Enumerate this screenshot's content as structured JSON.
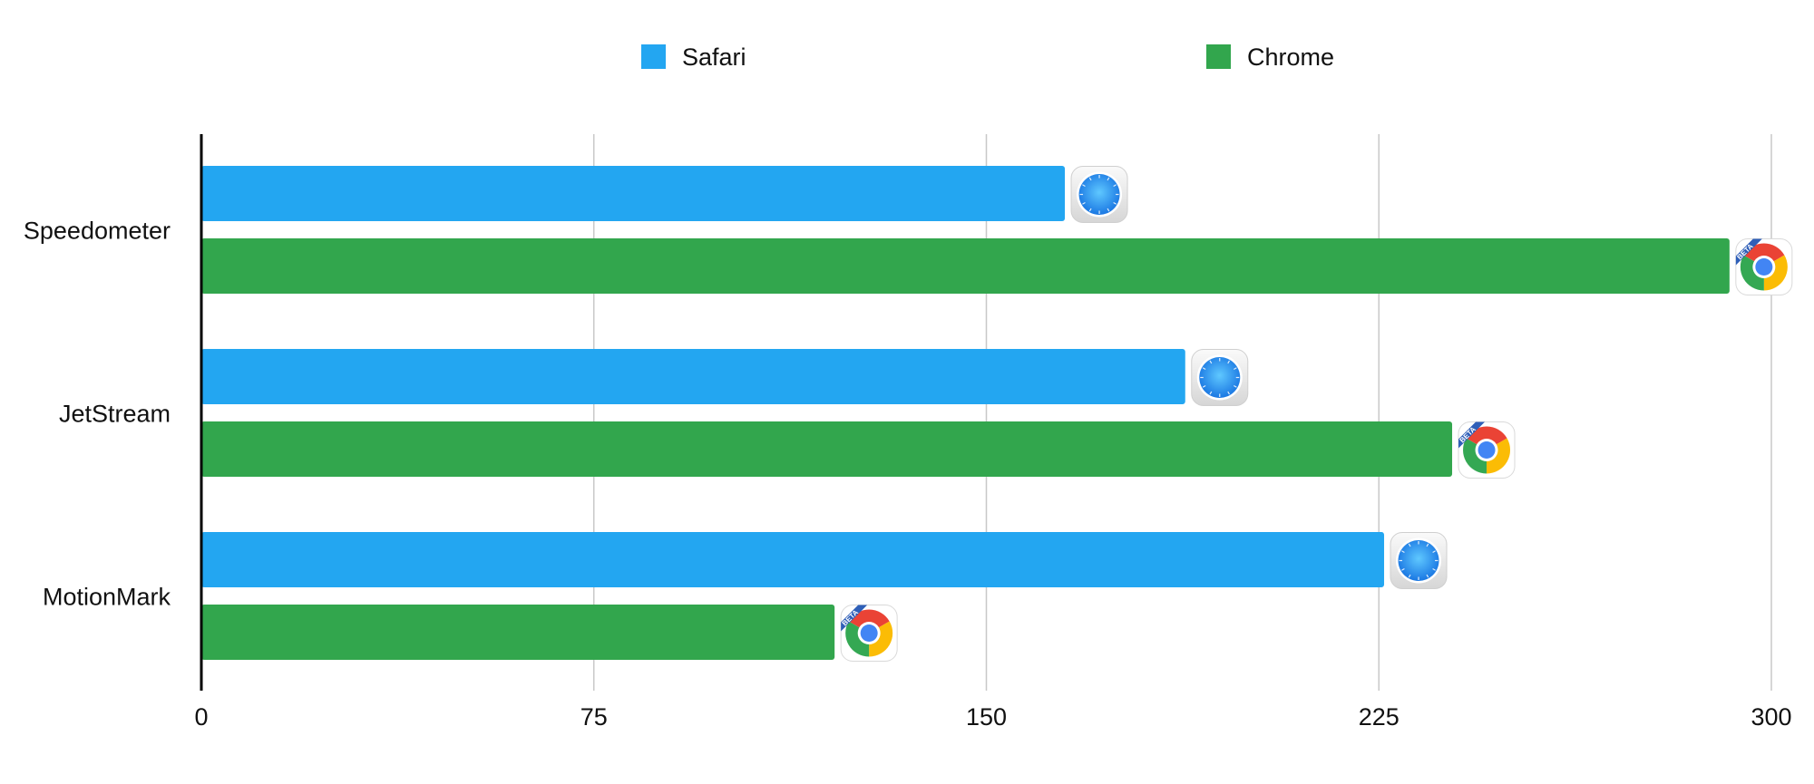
{
  "chart_data": {
    "type": "bar",
    "orientation": "horizontal",
    "categories": [
      "Speedometer",
      "JetStream",
      "MotionMark"
    ],
    "series": [
      {
        "name": "Safari",
        "color": "#23a6f1",
        "icon": "safari-icon",
        "values": [
          165,
          188,
          226
        ]
      },
      {
        "name": "Chrome",
        "color": "#32a64d",
        "icon": "chrome-beta-icon",
        "values": [
          292,
          239,
          121
        ]
      }
    ],
    "x_ticks": [
      0,
      75,
      150,
      225,
      300
    ],
    "xlim": [
      0,
      300
    ],
    "grid": true,
    "legend_position": "top-center",
    "title": "",
    "xlabel": "",
    "ylabel": ""
  }
}
